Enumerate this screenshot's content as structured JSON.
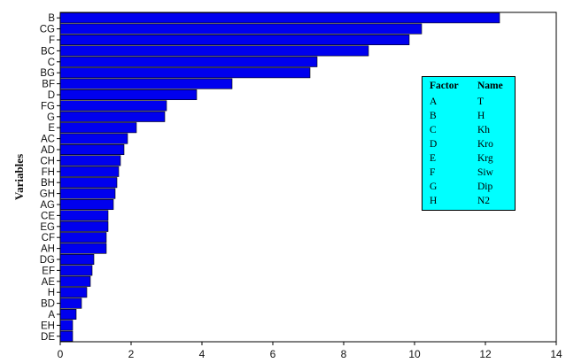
{
  "chart_data": {
    "type": "bar",
    "orientation": "horizontal",
    "ylabel": "Variables",
    "xlabel": "",
    "xlim": [
      0,
      14
    ],
    "xticks": [
      0,
      2,
      4,
      6,
      8,
      10,
      12,
      14
    ],
    "bar_color": "#0000ee",
    "categories": [
      "B",
      "CG",
      "F",
      "BC",
      "C",
      "BG",
      "BF",
      "D",
      "FG",
      "G",
      "E",
      "AC",
      "AD",
      "CH",
      "FH",
      "BH",
      "GH",
      "AG",
      "CE",
      "EG",
      "CF",
      "AH",
      "DG",
      "EF",
      "AE",
      "H",
      "BD",
      "A",
      "EH",
      "DE"
    ],
    "values": [
      12.4,
      10.2,
      9.85,
      8.7,
      7.25,
      7.05,
      4.85,
      3.85,
      3.0,
      2.95,
      2.15,
      1.9,
      1.8,
      1.7,
      1.65,
      1.6,
      1.55,
      1.5,
      1.35,
      1.35,
      1.3,
      1.3,
      0.95,
      0.9,
      0.85,
      0.75,
      0.6,
      0.45,
      0.35,
      0.35
    ],
    "legend": {
      "header": [
        "Factor",
        "Name"
      ],
      "rows": [
        [
          "A",
          "T"
        ],
        [
          "B",
          "H"
        ],
        [
          "C",
          "Kh"
        ],
        [
          "D",
          "Kro"
        ],
        [
          "E",
          "Krg"
        ],
        [
          "F",
          "Siw"
        ],
        [
          "G",
          "Dip"
        ],
        [
          "H",
          "N2"
        ]
      ]
    }
  }
}
